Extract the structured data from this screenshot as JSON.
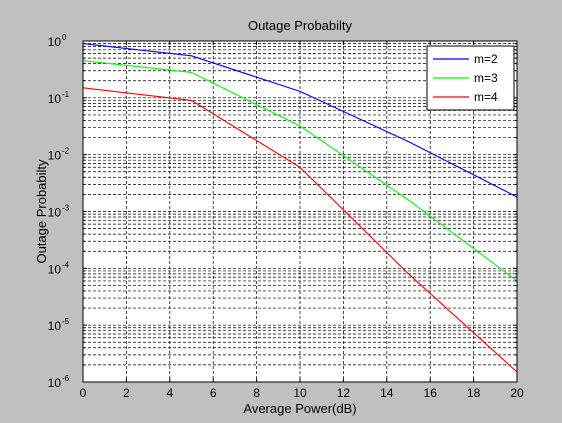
{
  "figure": {
    "background": "#c0c0c0",
    "axes_background": "#ffffff"
  },
  "chart_data": {
    "type": "line",
    "title": "Outage Probabilty",
    "xlabel": "Average Power(dB)",
    "ylabel": "Outage Probabilty",
    "xlim": [
      0,
      20
    ],
    "ylim": [
      1e-06,
      1
    ],
    "yscale": "log",
    "grid": true,
    "grid_style": "dashed",
    "legend_position": "top-right",
    "x_ticks": [
      0,
      2,
      4,
      6,
      8,
      10,
      12,
      14,
      16,
      18,
      20
    ],
    "x_tick_labels": [
      "0",
      "2",
      "4",
      "6",
      "8",
      "10",
      "12",
      "14",
      "16",
      "18",
      "20"
    ],
    "y_ticks": [
      {
        "value": 1.0,
        "base": "10",
        "exp": "0"
      },
      {
        "value": 0.1,
        "base": "10",
        "exp": "-1"
      },
      {
        "value": 0.01,
        "base": "10",
        "exp": "-2"
      },
      {
        "value": 0.001,
        "base": "10",
        "exp": "-3"
      },
      {
        "value": 0.0001,
        "base": "10",
        "exp": "-4"
      },
      {
        "value": 1e-05,
        "base": "10",
        "exp": "-5"
      },
      {
        "value": 1e-06,
        "base": "10",
        "exp": "-6"
      }
    ],
    "series": [
      {
        "name": "m=2",
        "color": "#0000ff",
        "x": [
          0,
          5,
          10,
          15,
          20
        ],
        "y": [
          0.9,
          0.55,
          0.13,
          0.017,
          0.0018
        ]
      },
      {
        "name": "m=3",
        "color": "#00ff00",
        "x": [
          0,
          5,
          10,
          15,
          20
        ],
        "y": [
          0.45,
          0.28,
          0.032,
          0.0016,
          6e-05
        ]
      },
      {
        "name": "m=4",
        "color": "#ff0000",
        "x": [
          0,
          5,
          10,
          15,
          20
        ],
        "y": [
          0.15,
          0.09,
          0.006,
          8e-05,
          1.5e-06
        ]
      }
    ]
  }
}
